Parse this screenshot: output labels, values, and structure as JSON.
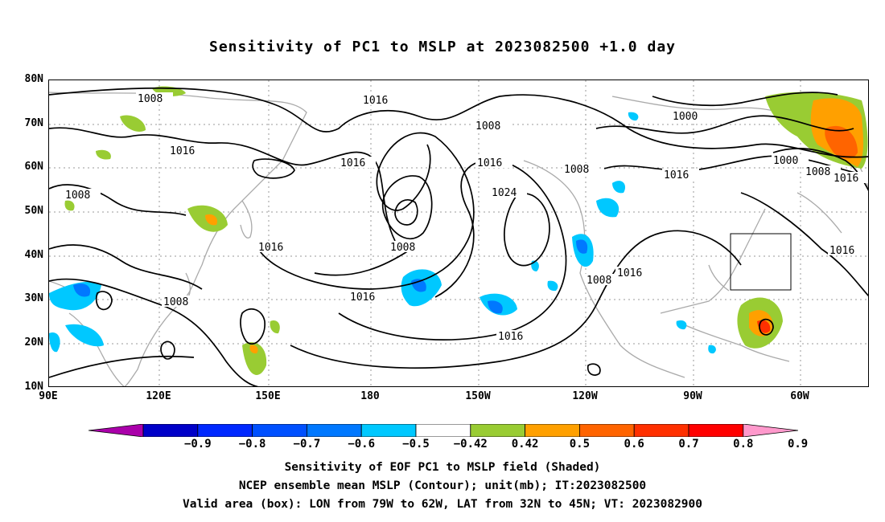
{
  "title": "Sensitivity of PC1 to MSLP at 2023082500 +1.0 day",
  "lat_labels": [
    "80N",
    "70N",
    "60N",
    "50N",
    "40N",
    "30N",
    "20N",
    "10N"
  ],
  "lon_labels": [
    "90E",
    "120E",
    "150E",
    "180",
    "150W",
    "120W",
    "90W",
    "60W"
  ],
  "contour_labels": {
    "l1008a": "1008",
    "l1016a": "1016",
    "l1008b": "1008",
    "l1000a": "1000",
    "l1016b": "1016",
    "l1016c": "1016",
    "l1016d": "1016",
    "l1024": "1024",
    "l1008c": "1008",
    "l1016e": "1016",
    "l1000b": "1000",
    "l1008d": "1008",
    "l1016f": "1016",
    "l1008e": "1008",
    "l1016g": "1016",
    "l1008f": "1008",
    "l1016h": "1016",
    "l1016i": "1016",
    "l1008g": "1008",
    "l1016j": "1016",
    "l1016k": "1016"
  },
  "colorbar": {
    "labels": [
      "−0.9",
      "−0.8",
      "−0.7",
      "−0.6",
      "−0.5",
      "−0.42",
      "0.42",
      "0.5",
      "0.6",
      "0.7",
      "0.8",
      "0.9"
    ],
    "colors": [
      "#aa00aa",
      "#0000c8",
      "#0028ff",
      "#0050ff",
      "#0078ff",
      "#00c8ff",
      "#ffffff",
      "#99cc33",
      "#ffa000",
      "#ff6400",
      "#ff3000",
      "#ff0000",
      "#ff99cc"
    ]
  },
  "captions": {
    "line1": "Sensitivity of EOF PC1 to MSLP field (Shaded)",
    "line2": "NCEP ensemble mean MSLP (Contour); unit(mb); IT:2023082500",
    "line3": "Valid area (box): LON from 79W to 62W, LAT from 32N to 45N; VT: 2023082900"
  }
}
